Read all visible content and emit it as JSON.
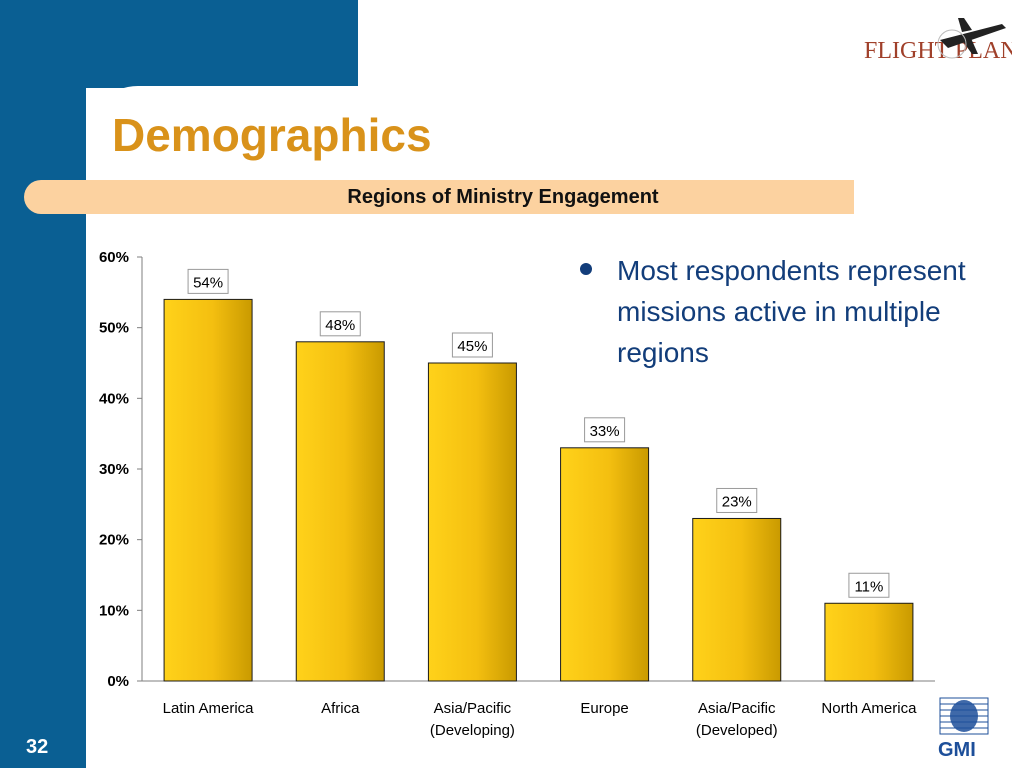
{
  "slide": {
    "title": "Demographics",
    "subtitle": "Regions of Ministry Engagement",
    "page_number": "32",
    "bullet": "Most respondents represent missions active in multiple regions",
    "logo_text": "FLIGHT PLAN",
    "footer_logo_text": "GMI"
  },
  "colors": {
    "brand_blue": "#0a5f93",
    "title_orange": "#d9921a",
    "subtitle_band": "#fcd2a0",
    "bar_fill": "#f4bf10",
    "bullet_text": "#123d7a"
  },
  "chart_data": {
    "type": "bar",
    "categories": [
      [
        "Latin America"
      ],
      [
        "Africa"
      ],
      [
        "Asia/Pacific",
        "(Developing)"
      ],
      [
        "Europe"
      ],
      [
        "Asia/Pacific",
        "(Developed)"
      ],
      [
        "North America"
      ]
    ],
    "values": [
      54,
      48,
      45,
      33,
      23,
      11
    ],
    "value_labels": [
      "54%",
      "48%",
      "45%",
      "33%",
      "23%",
      "11%"
    ],
    "y_ticks": [
      "0%",
      "10%",
      "20%",
      "30%",
      "40%",
      "50%",
      "60%"
    ],
    "ylim": [
      0,
      60
    ],
    "grid": false,
    "legend": "none"
  }
}
